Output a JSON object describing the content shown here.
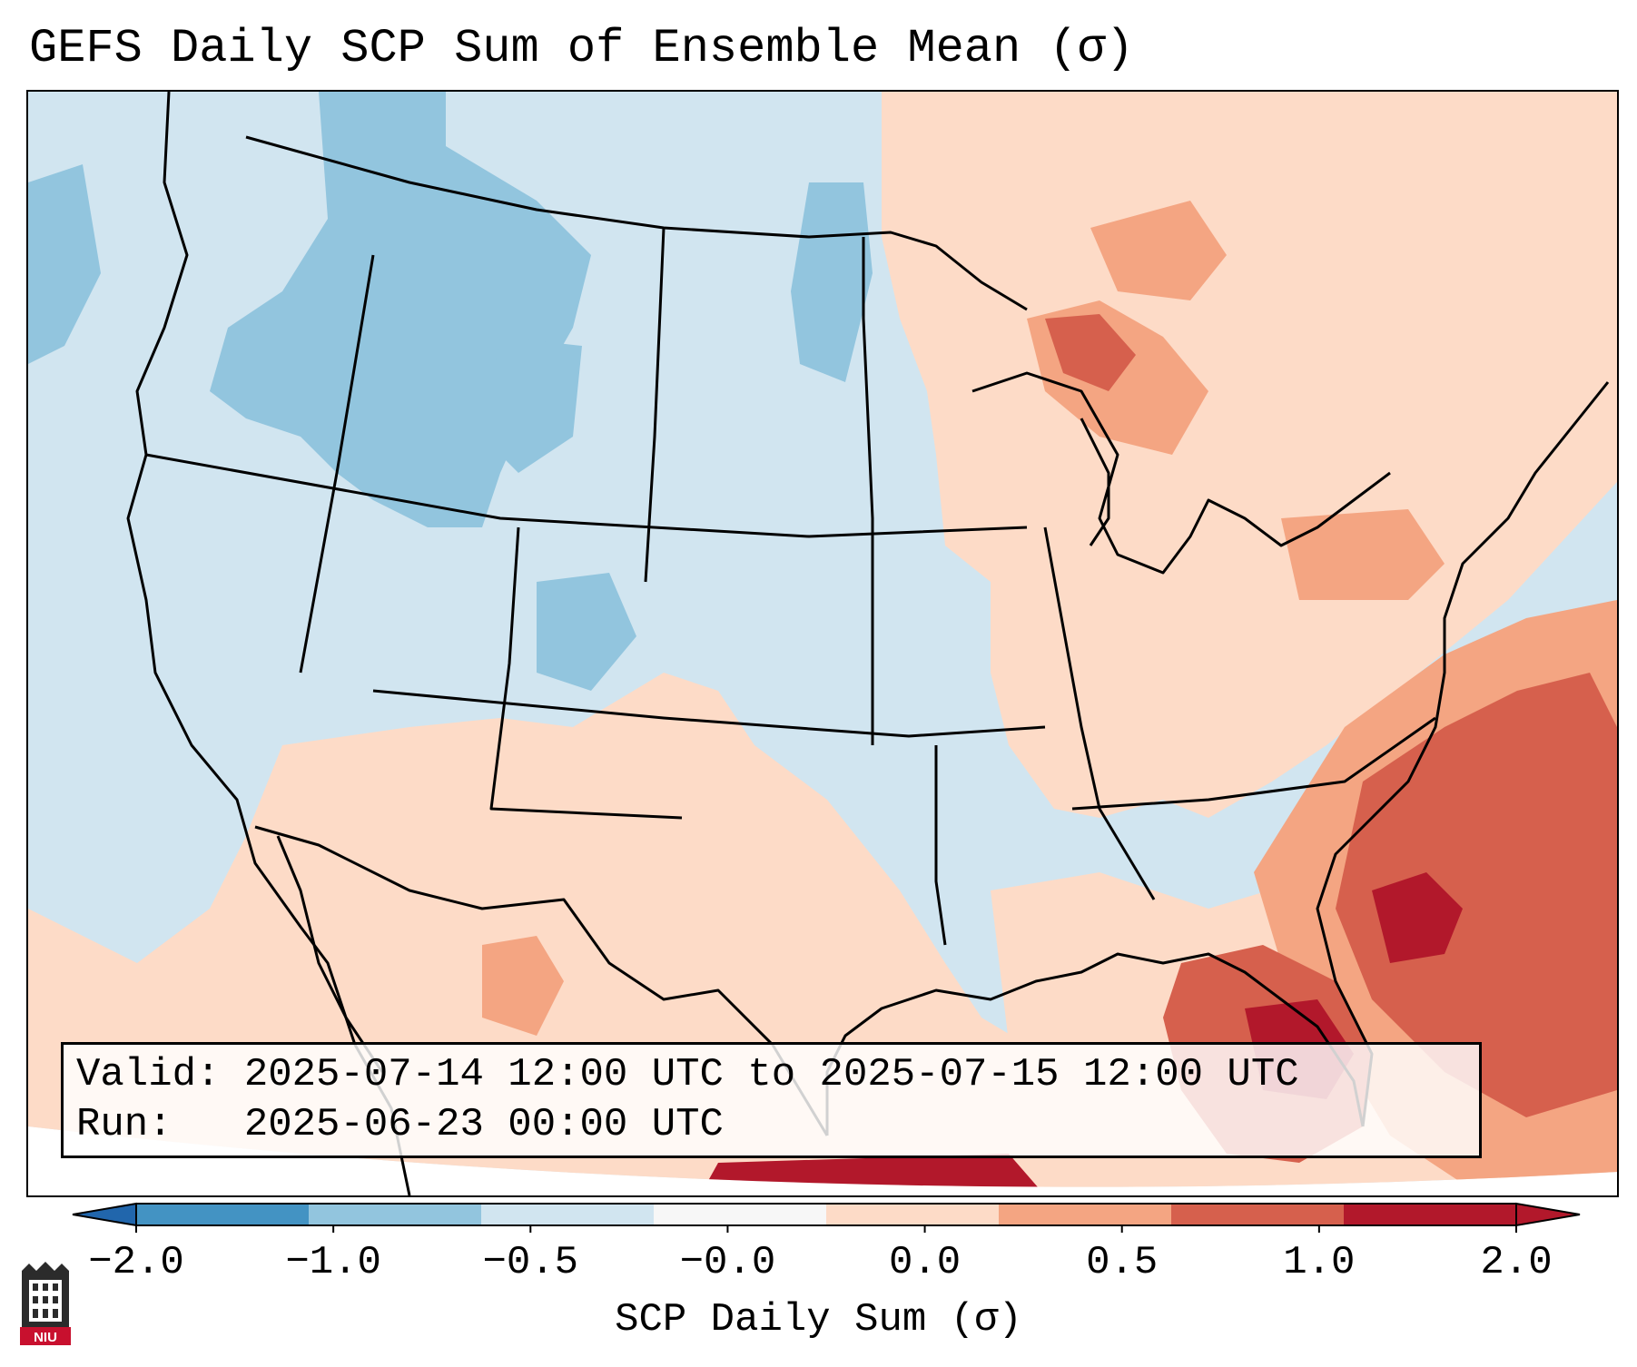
{
  "title": "GEFS Daily SCP Sum of Ensemble Mean (σ)",
  "info": {
    "valid_label": "Valid:",
    "valid_value": "2025-07-14 12:00 UTC to 2025-07-15 12:00 UTC",
    "run_label": "Run:",
    "run_value": "2025-06-23 00:00 UTC"
  },
  "colorbar": {
    "label": "SCP Daily Sum (σ)",
    "ticks": [
      "−2.0",
      "−1.0",
      "−0.5",
      "−0.0",
      "0.0",
      "0.5",
      "1.0",
      "2.0"
    ],
    "colors": [
      "#4393c3",
      "#92c5de",
      "#d1e5f0",
      "#f7f7f7",
      "#fddbc7",
      "#f4a582",
      "#d6604d",
      "#b2182b"
    ],
    "extend_low_color": "#2166ac",
    "extend_high_color": "#b2182b"
  },
  "logo": {
    "text": "NIU"
  },
  "colors": {
    "frame": "#000000",
    "background": "#ffffff"
  }
}
